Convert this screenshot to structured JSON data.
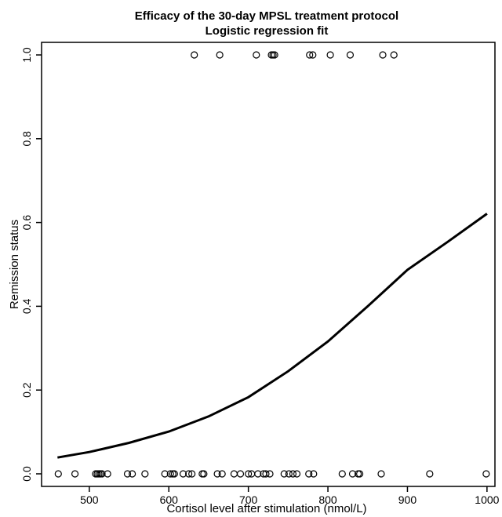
{
  "chart_data": {
    "type": "scatter",
    "title": "Efficacy of the 30-day MPSL treatment protocol",
    "subtitle": "Logistic regression fit",
    "xlabel": "Cortisol level after stimulation (nmol/L)",
    "ylabel": "Remission status",
    "xlim": [
      440,
      1010
    ],
    "ylim": [
      -0.03,
      1.03
    ],
    "xticks": [
      500,
      600,
      700,
      800,
      900,
      1000
    ],
    "yticks": [
      0.0,
      0.2,
      0.4,
      0.6,
      0.8,
      1.0
    ],
    "xtick_labels": [
      "500",
      "600",
      "700",
      "800",
      "900",
      "1000"
    ],
    "ytick_labels": [
      "0.0",
      "0.2",
      "0.4",
      "0.6",
      "0.8",
      "1.0"
    ],
    "grid": false,
    "series": [
      {
        "marker": "open-circle",
        "points": [
          [
            461,
            0
          ],
          [
            482,
            0
          ],
          [
            508,
            0
          ],
          [
            510,
            0
          ],
          [
            512,
            0
          ],
          [
            514,
            0
          ],
          [
            516,
            0
          ],
          [
            523,
            0
          ],
          [
            548,
            0
          ],
          [
            554,
            0
          ],
          [
            570,
            0
          ],
          [
            595,
            0
          ],
          [
            602,
            0
          ],
          [
            605,
            0
          ],
          [
            607,
            0
          ],
          [
            618,
            0
          ],
          [
            625,
            0
          ],
          [
            629,
            0
          ],
          [
            642,
            0
          ],
          [
            644,
            0
          ],
          [
            661,
            0
          ],
          [
            667,
            0
          ],
          [
            682,
            0
          ],
          [
            690,
            0
          ],
          [
            700,
            0
          ],
          [
            704,
            0
          ],
          [
            712,
            0
          ],
          [
            719,
            0
          ],
          [
            722,
            0
          ],
          [
            727,
            0
          ],
          [
            745,
            0
          ],
          [
            751,
            0
          ],
          [
            756,
            0
          ],
          [
            761,
            0
          ],
          [
            776,
            0
          ],
          [
            782,
            0
          ],
          [
            818,
            0
          ],
          [
            831,
            0
          ],
          [
            838,
            0
          ],
          [
            840,
            0
          ],
          [
            867,
            0
          ],
          [
            928,
            0
          ],
          [
            999,
            0
          ],
          [
            632,
            1
          ],
          [
            664,
            1
          ],
          [
            710,
            1
          ],
          [
            729,
            1
          ],
          [
            731,
            1
          ],
          [
            733,
            1
          ],
          [
            777,
            1
          ],
          [
            781,
            1
          ],
          [
            803,
            1
          ],
          [
            828,
            1
          ],
          [
            869,
            1
          ],
          [
            883,
            1
          ]
        ]
      },
      {
        "marker": "line",
        "points": [
          [
            460,
            0.039
          ],
          [
            500,
            0.052
          ],
          [
            550,
            0.074
          ],
          [
            600,
            0.101
          ],
          [
            650,
            0.137
          ],
          [
            700,
            0.183
          ],
          [
            750,
            0.245
          ],
          [
            800,
            0.316
          ],
          [
            850,
            0.4
          ],
          [
            900,
            0.487
          ],
          [
            950,
            0.553
          ],
          [
            1000,
            0.621
          ]
        ]
      }
    ]
  }
}
